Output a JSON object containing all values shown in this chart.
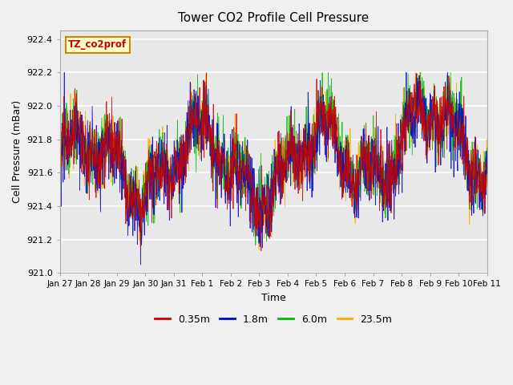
{
  "title": "Tower CO2 Profile Cell Pressure",
  "ylabel": "Cell Pressure (mBar)",
  "xlabel": "Time",
  "ylim": [
    921.0,
    922.45
  ],
  "yticks": [
    921.0,
    921.2,
    921.4,
    921.6,
    921.8,
    922.0,
    922.2,
    922.4
  ],
  "series_labels": [
    "0.35m",
    "1.8m",
    "6.0m",
    "23.5m"
  ],
  "series_colors": [
    "#cc0000",
    "#0000cc",
    "#00bb00",
    "#ffaa00"
  ],
  "annotation_text": "TZ_co2prof",
  "annotation_bg": "#ffffcc",
  "annotation_edge": "#cc8800",
  "annotation_text_color": "#cc0000",
  "n_days": 15,
  "base_pressure": 921.65,
  "amplitude": 0.18,
  "seed": 42,
  "plot_bg": "#e8e8e8",
  "xtick_labels": [
    "Jan 27",
    "Jan 28",
    "Jan 29",
    "Jan 30",
    "Jan 31",
    "Feb 1",
    "Feb 2",
    "Feb 3",
    "Feb 4",
    "Feb 5",
    "Feb 6",
    "Feb 7",
    "Feb 8",
    "Feb 9",
    "Feb 10",
    "Feb 11"
  ],
  "figsize": [
    6.4,
    4.8
  ],
  "dpi": 100
}
